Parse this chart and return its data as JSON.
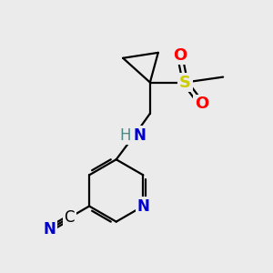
{
  "bg_color": "#ebebeb",
  "bond_color": "#000000",
  "bond_width": 1.6,
  "atom_colors": {
    "N": "#0000cc",
    "S": "#cccc00",
    "O": "#ff0000",
    "C": "#000000",
    "H": "#4a8888"
  },
  "font_size_atom": 11,
  "font_size_small": 10,
  "figsize": [
    3.0,
    3.0
  ],
  "dpi": 100
}
